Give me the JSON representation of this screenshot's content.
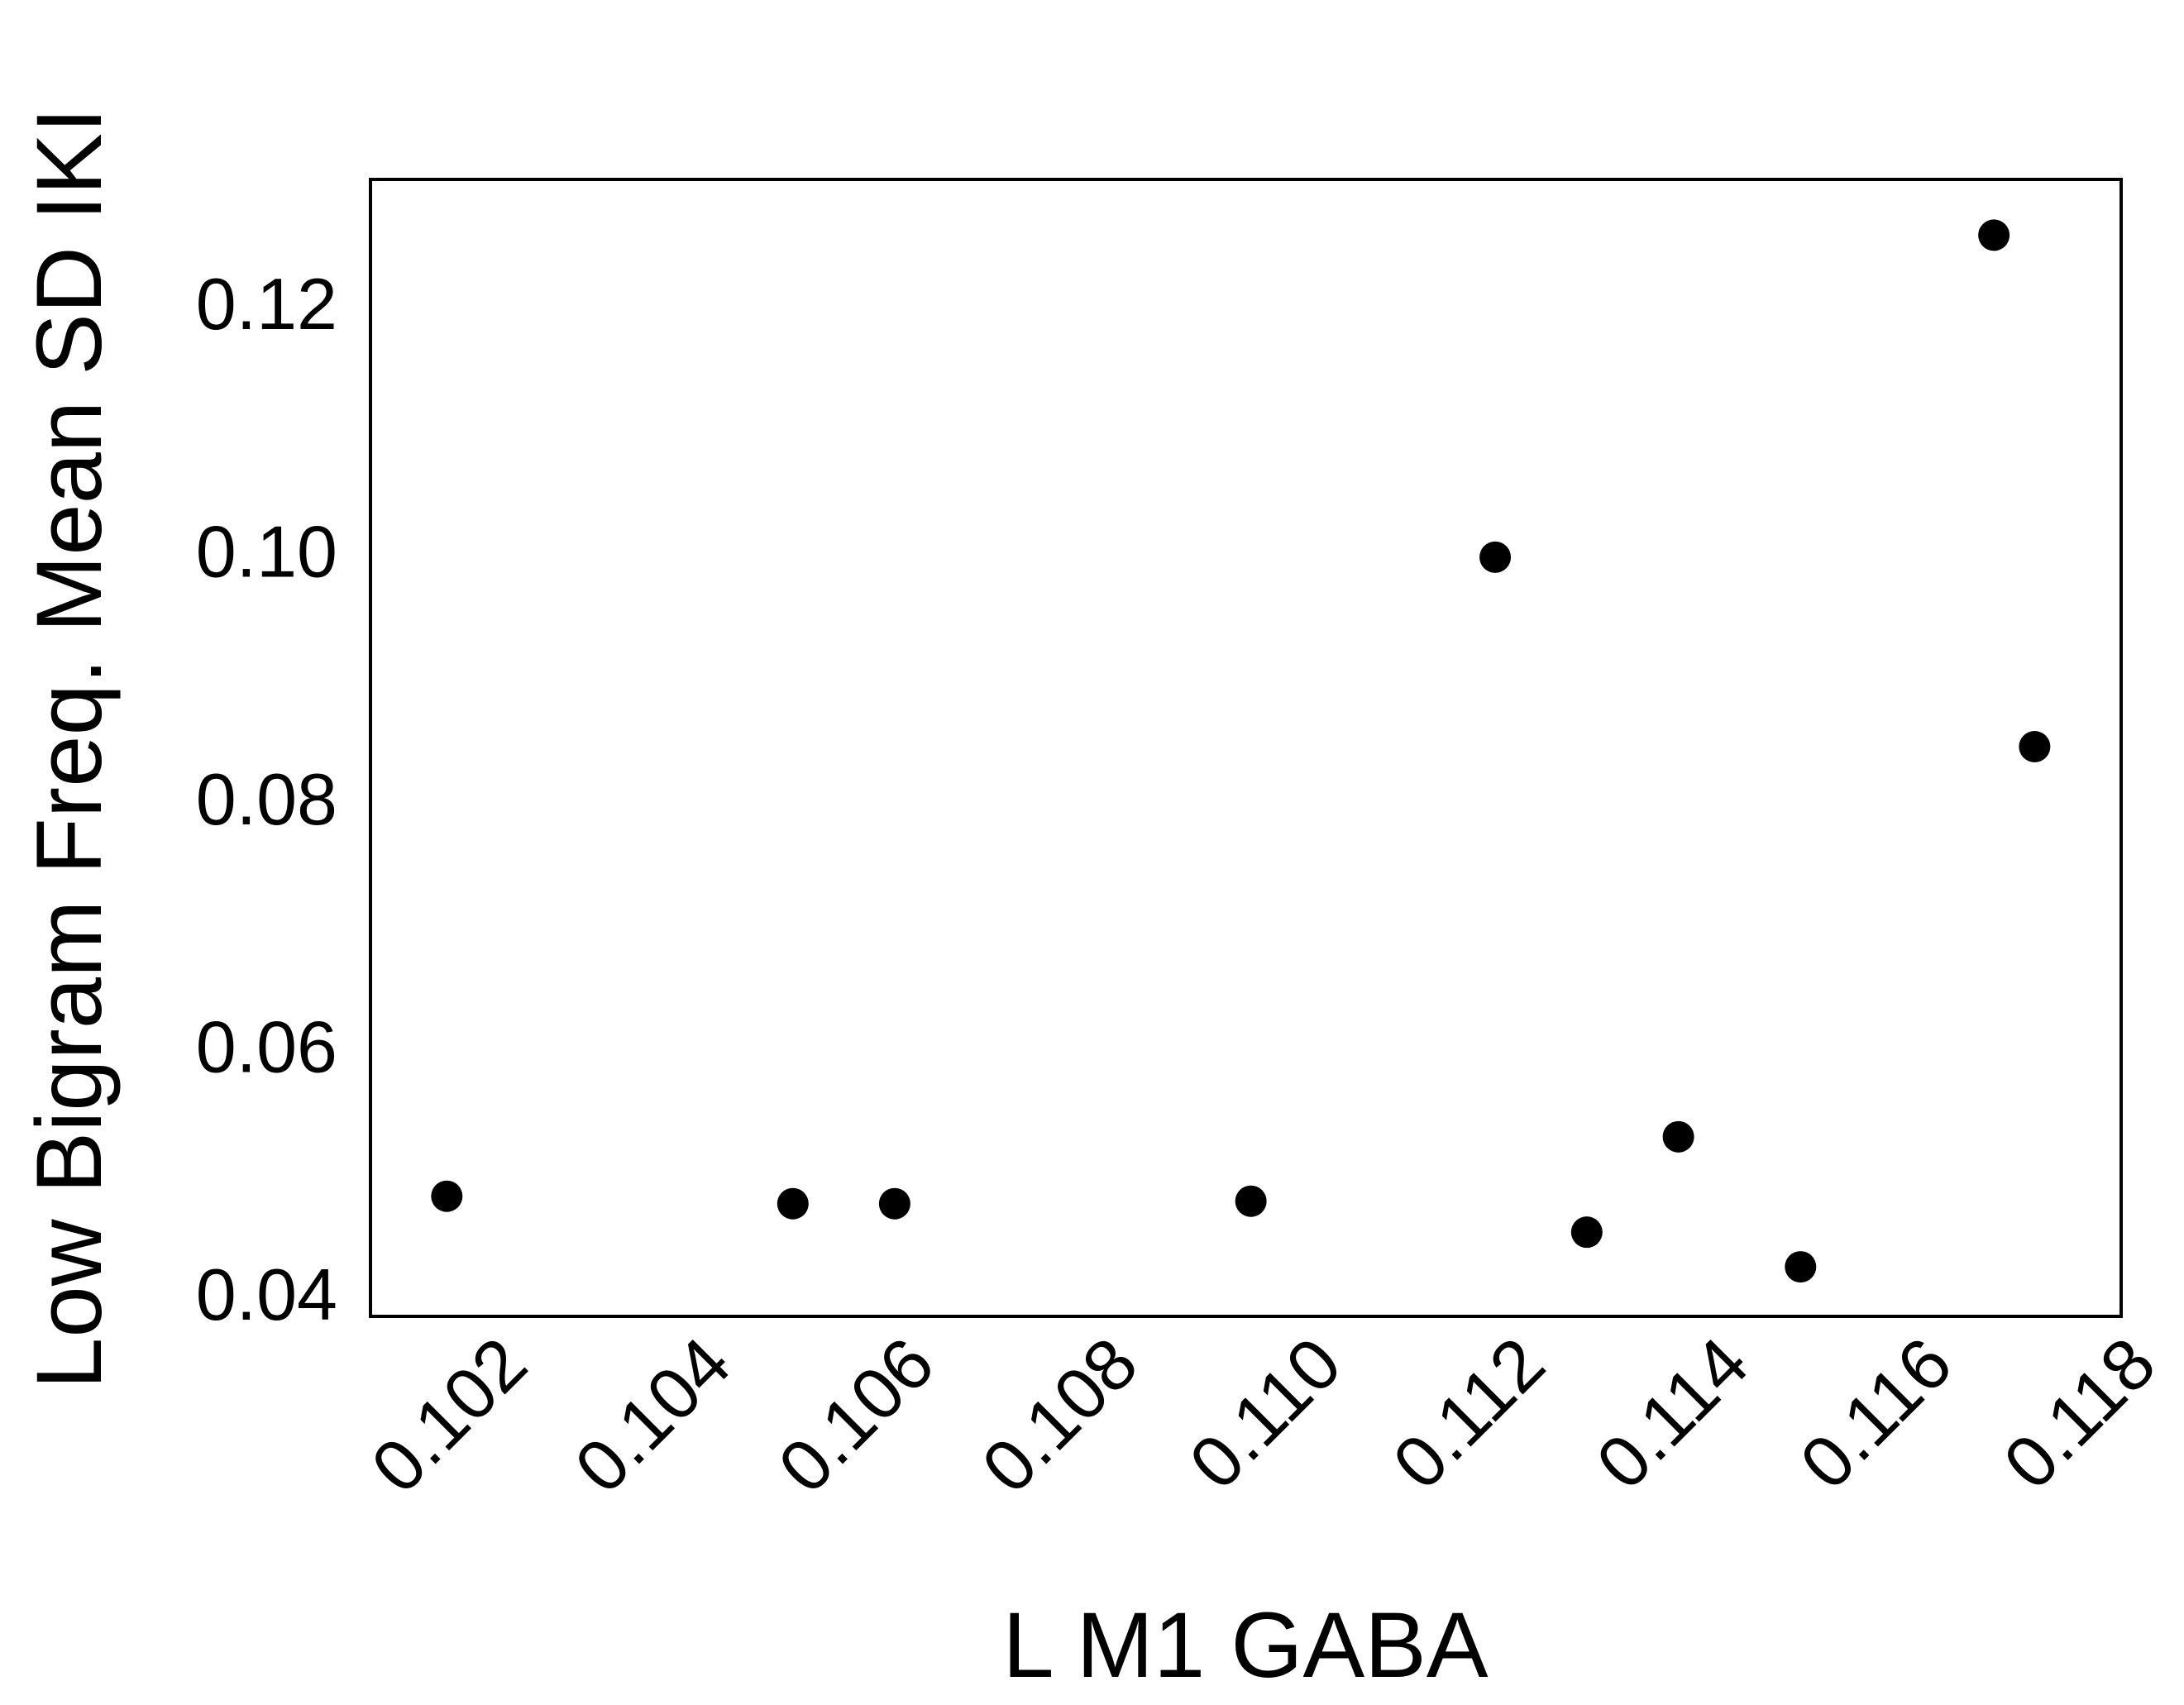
{
  "chart_data": {
    "type": "scatter",
    "xlabel": "L M1 GABA",
    "ylabel": "Low Bigram Freq. Mean SD IKI",
    "xlim": [
      0.10065,
      0.11785
    ],
    "ylim": [
      0.0382,
      0.13
    ],
    "x_ticks": [
      "0.102",
      "0.104",
      "0.106",
      "0.108",
      "0.110",
      "0.112",
      "0.114",
      "0.116",
      "0.118"
    ],
    "y_ticks": [
      "0.04",
      "0.06",
      "0.08",
      "0.10",
      "0.12"
    ],
    "grid": false,
    "points": [
      {
        "x": 0.1014,
        "y": 0.0479
      },
      {
        "x": 0.1048,
        "y": 0.0473
      },
      {
        "x": 0.1058,
        "y": 0.0473
      },
      {
        "x": 0.1093,
        "y": 0.0475
      },
      {
        "x": 0.1117,
        "y": 0.0995
      },
      {
        "x": 0.1126,
        "y": 0.045
      },
      {
        "x": 0.1135,
        "y": 0.0527
      },
      {
        "x": 0.1147,
        "y": 0.0422
      },
      {
        "x": 0.1166,
        "y": 0.1255
      },
      {
        "x": 0.117,
        "y": 0.0842
      }
    ],
    "marker_color": "#000000"
  }
}
